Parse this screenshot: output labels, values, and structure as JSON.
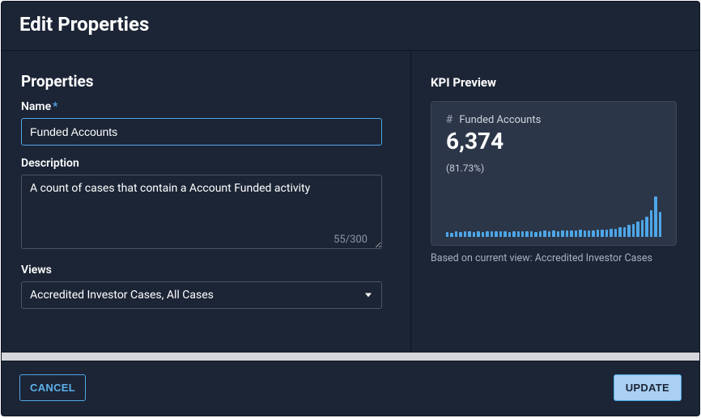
{
  "header": {
    "title": "Edit Properties"
  },
  "properties": {
    "section_title": "Properties",
    "name": {
      "label": "Name",
      "required": "*",
      "value": "Funded Accounts"
    },
    "description": {
      "label": "Description",
      "value": "A count of cases that contain a Account Funded activity",
      "char_count": "55/300"
    },
    "views": {
      "label": "Views",
      "selected": "Accredited Investor Cases, All Cases"
    }
  },
  "preview": {
    "title": "KPI Preview",
    "kpi": {
      "name": "Funded Accounts",
      "value": "6,374",
      "percent": "(81.73%)"
    },
    "note": "Based on current view: Accredited Investor Cases",
    "spark": {
      "bar_color": "#4ea6e6",
      "values": [
        6,
        5,
        7,
        6,
        7,
        7,
        6,
        7,
        6,
        7,
        7,
        7,
        7,
        7,
        6,
        7,
        7,
        7,
        7,
        7,
        6,
        7,
        8,
        7,
        8,
        7,
        8,
        8,
        8,
        8,
        9,
        8,
        8,
        8,
        9,
        9,
        9,
        10,
        10,
        12,
        12,
        14,
        15,
        18,
        20,
        24,
        32,
        48,
        30
      ]
    }
  },
  "footer": {
    "cancel": "CANCEL",
    "update": "UPDATE"
  },
  "colors": {
    "bg": "#1b2535",
    "panel": "#2b3648",
    "accent": "#4ea6e6"
  }
}
